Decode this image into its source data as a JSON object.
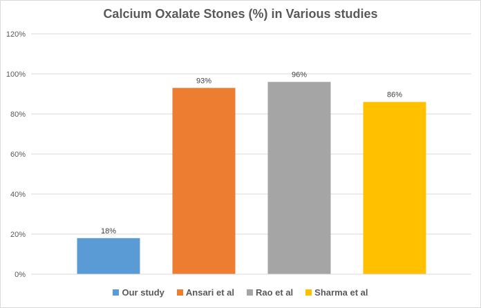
{
  "chart_data": {
    "type": "bar",
    "title": "Calcium Oxalate Stones  (%) in Various studies",
    "xlabel": "",
    "ylabel": "",
    "ylim": [
      0,
      120
    ],
    "yticks": [
      0,
      20,
      40,
      60,
      80,
      100,
      120
    ],
    "ytick_labels": [
      "0%",
      "20%",
      "40%",
      "60%",
      "80%",
      "100%",
      "120%"
    ],
    "grid": true,
    "legend_position": "bottom",
    "series": [
      {
        "name": "Our study",
        "value": 18,
        "label": "18%",
        "color": "#5b9bd5"
      },
      {
        "name": "Ansari et al",
        "value": 93,
        "label": "93%",
        "color": "#ed7d31"
      },
      {
        "name": "Rao et al",
        "value": 96,
        "label": "96%",
        "color": "#a5a5a5"
      },
      {
        "name": "Sharma et al",
        "value": 86,
        "label": "86%",
        "color": "#ffc000"
      }
    ]
  }
}
